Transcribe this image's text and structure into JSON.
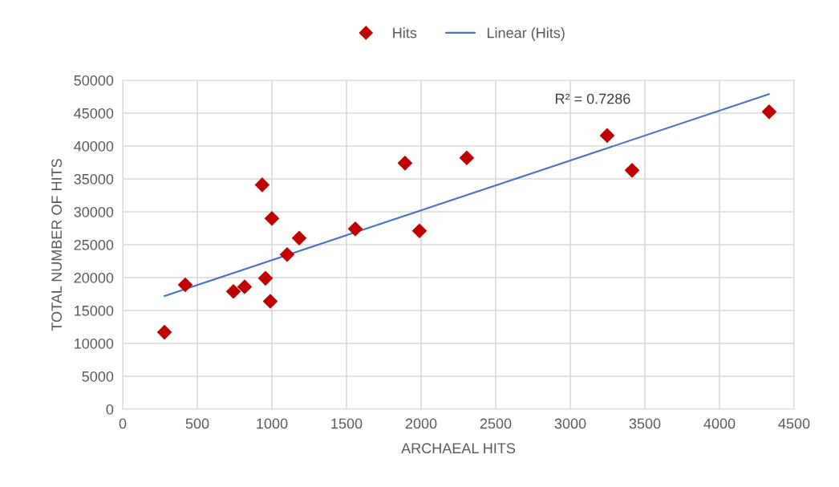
{
  "chart_data": {
    "type": "scatter",
    "xlabel": "ARCHAEAL HITS",
    "ylabel": "TOTAL NUMBER OF HITS",
    "series": [
      {
        "name": "Hits",
        "color": "#c00000",
        "marker": "diamond",
        "x": [
          280,
          419,
          742,
          817,
          935,
          957,
          989,
          1000,
          1102,
          1183,
          1559,
          1892,
          1989,
          2306,
          3247,
          3414,
          4333
        ],
        "values": [
          11700,
          18900,
          17900,
          18600,
          34100,
          19900,
          16400,
          29000,
          23500,
          26000,
          27400,
          37400,
          27100,
          38200,
          41600,
          36300,
          45200
        ]
      },
      {
        "name": "Linear (Hits)",
        "type": "line",
        "color": "#4472c4",
        "line_style": "solid",
        "x": [
          280,
          4333
        ],
        "values": [
          17200,
          47900
        ]
      }
    ],
    "annotations": [
      "R² = 0.7286"
    ],
    "xlim": [
      0,
      4500
    ],
    "xticks": [
      0,
      500,
      1000,
      1500,
      2000,
      2500,
      3000,
      3500,
      4000,
      4500
    ],
    "ylim": [
      0,
      50000
    ],
    "yticks": [
      0,
      5000,
      10000,
      15000,
      20000,
      25000,
      30000,
      35000,
      40000,
      45000,
      50000
    ],
    "grid": true,
    "legend": "top"
  }
}
